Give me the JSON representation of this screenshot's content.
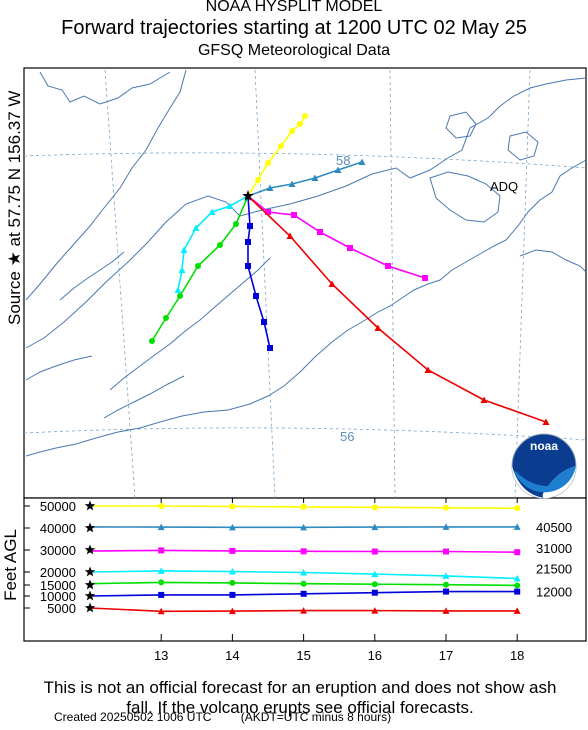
{
  "header": {
    "line1": "NOAA HYSPLIT MODEL",
    "line2": "Forward trajectories starting at 1200 UTC 02 May 25",
    "line3": "GFSQ Meteorological Data"
  },
  "map": {
    "source_label": "Source ★ at 57.75 N 156.37 W",
    "lat_labels": [
      "58",
      "56"
    ],
    "place_label": "ADQ",
    "logo_text": "noaa"
  },
  "altitude_panel": {
    "ylabel": "Feet AGL",
    "right_labels": [
      "40500",
      "31000",
      "21500",
      "12000"
    ]
  },
  "colors": {
    "yellow": "#ffff00",
    "steelblue": "#2f8ac0",
    "magenta": "#ff00ff",
    "cyan": "#00eeff",
    "green": "#00e000",
    "blue": "#0000dd",
    "red": "#ee0000",
    "coast": "#4a78b0",
    "grid": "#7aa6cc"
  },
  "chart_data": {
    "type": "line",
    "title": "Forward trajectories starting at 1200 UTC 02 May 25",
    "xlabel": "",
    "ylabel": "Feet AGL",
    "x": [
      12,
      13,
      14,
      15,
      16,
      17,
      18
    ],
    "xticks": [
      "13",
      "14",
      "15",
      "16",
      "17",
      "18"
    ],
    "xlim": [
      12,
      18.5
    ],
    "yticks": [
      "5000",
      "10000",
      "15000",
      "20000",
      "30000",
      "40000",
      "50000"
    ],
    "series": [
      {
        "color": "yellow",
        "values": [
          50000,
          50000,
          49800,
          49600,
          49400,
          49200,
          49000
        ]
      },
      {
        "color": "steelblue",
        "values": [
          40500,
          40400,
          40300,
          40300,
          40400,
          40500,
          40500
        ]
      },
      {
        "color": "magenta",
        "values": [
          29500,
          29800,
          29600,
          29400,
          29300,
          29300,
          29000
        ]
      },
      {
        "color": "cyan",
        "values": [
          20000,
          20500,
          20200,
          19800,
          19200,
          18500,
          17500
        ]
      },
      {
        "color": "green",
        "values": [
          15500,
          16000,
          15800,
          15500,
          15300,
          15100,
          14800
        ]
      },
      {
        "color": "blue",
        "values": [
          10000,
          10500,
          10500,
          11000,
          11500,
          12000,
          12000
        ]
      },
      {
        "color": "red",
        "values": [
          5000,
          3500,
          3600,
          3800,
          3800,
          3700,
          3700
        ]
      }
    ]
  },
  "footer": {
    "disclaimer": "This is not an official forecast for an eruption and does not show ash fall. If the volcano erupts see official forecasts.",
    "created": "Created 20250502 1006 UTC",
    "akdt": "(AKDT=UTC minus 8 hours)"
  }
}
